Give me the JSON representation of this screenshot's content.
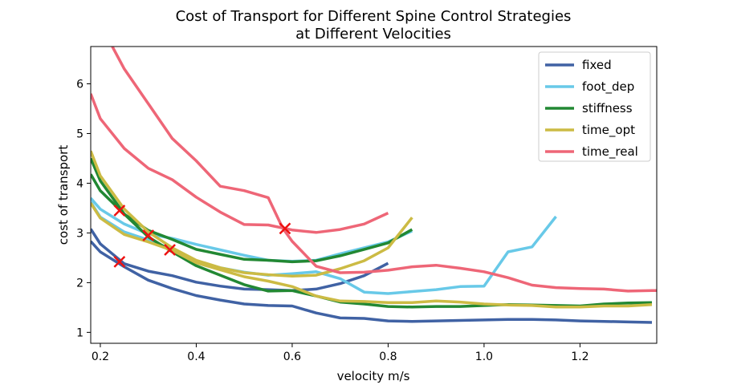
{
  "chart_data": {
    "type": "line",
    "title": "Cost of Transport for Different Spine Control Strategies\nat Different Velocities",
    "xlabel": "velocity m/s",
    "ylabel": "cost of transport",
    "xlim": [
      0.18,
      1.36
    ],
    "ylim": [
      0.78,
      6.75
    ],
    "xticks": [
      0.2,
      0.4,
      0.6,
      0.8,
      1.0,
      1.2
    ],
    "xtick_labels": [
      "0.2",
      "0.4",
      "0.6",
      "0.8",
      "1.0",
      "1.2"
    ],
    "yticks": [
      1,
      2,
      3,
      4,
      5,
      6
    ],
    "ytick_labels": [
      "1",
      "2",
      "3",
      "4",
      "5",
      "6"
    ],
    "grid": false,
    "legend_position": "top-right",
    "series": [
      {
        "name": "fixed",
        "color": "#4062a4",
        "branches": [
          [
            [
              0.18,
              2.83
            ],
            [
              0.2,
              2.62
            ],
            [
              0.25,
              2.32
            ],
            [
              0.3,
              2.05
            ],
            [
              0.35,
              1.88
            ],
            [
              0.4,
              1.74
            ],
            [
              0.45,
              1.65
            ],
            [
              0.5,
              1.57
            ],
            [
              0.55,
              1.54
            ],
            [
              0.6,
              1.53
            ],
            [
              0.65,
              1.39
            ],
            [
              0.7,
              1.29
            ],
            [
              0.75,
              1.28
            ],
            [
              0.8,
              1.23
            ],
            [
              0.85,
              1.22
            ],
            [
              0.9,
              1.23
            ],
            [
              0.95,
              1.24
            ],
            [
              1.0,
              1.25
            ],
            [
              1.05,
              1.26
            ],
            [
              1.1,
              1.26
            ],
            [
              1.15,
              1.25
            ],
            [
              1.2,
              1.23
            ],
            [
              1.25,
              1.22
            ],
            [
              1.3,
              1.21
            ],
            [
              1.35,
              1.2
            ]
          ],
          [
            [
              0.18,
              3.08
            ],
            [
              0.2,
              2.78
            ],
            [
              0.25,
              2.38
            ],
            [
              0.3,
              2.23
            ],
            [
              0.35,
              2.14
            ],
            [
              0.4,
              2.01
            ],
            [
              0.45,
              1.93
            ],
            [
              0.5,
              1.87
            ],
            [
              0.55,
              1.86
            ],
            [
              0.6,
              1.84
            ],
            [
              0.65,
              1.87
            ],
            [
              0.7,
              1.98
            ],
            [
              0.75,
              2.14
            ],
            [
              0.8,
              2.39
            ]
          ]
        ]
      },
      {
        "name": "foot_dep",
        "color": "#68c9e8",
        "branches": [
          [
            [
              0.18,
              3.7
            ],
            [
              0.2,
              3.48
            ],
            [
              0.25,
              3.18
            ],
            [
              0.3,
              2.98
            ],
            [
              0.35,
              2.89
            ],
            [
              0.4,
              2.77
            ],
            [
              0.45,
              2.66
            ],
            [
              0.5,
              2.55
            ],
            [
              0.55,
              2.45
            ],
            [
              0.6,
              2.43
            ],
            [
              0.65,
              2.45
            ],
            [
              0.7,
              2.58
            ],
            [
              0.75,
              2.7
            ],
            [
              0.8,
              2.82
            ],
            [
              0.85,
              3.04
            ]
          ],
          [
            [
              0.18,
              3.62
            ],
            [
              0.2,
              3.32
            ],
            [
              0.25,
              3.02
            ],
            [
              0.3,
              2.86
            ],
            [
              0.35,
              2.67
            ],
            [
              0.4,
              2.44
            ],
            [
              0.45,
              2.3
            ],
            [
              0.5,
              2.21
            ],
            [
              0.55,
              2.15
            ],
            [
              0.6,
              2.18
            ],
            [
              0.65,
              2.22
            ],
            [
              0.7,
              2.08
            ],
            [
              0.75,
              1.81
            ],
            [
              0.8,
              1.78
            ],
            [
              0.85,
              1.82
            ],
            [
              0.9,
              1.86
            ],
            [
              0.95,
              1.92
            ],
            [
              1.0,
              1.93
            ],
            [
              1.05,
              2.62
            ],
            [
              1.1,
              2.72
            ],
            [
              1.15,
              3.33
            ]
          ]
        ]
      },
      {
        "name": "stiffness",
        "color": "#228833",
        "branches": [
          [
            [
              0.18,
              4.5
            ],
            [
              0.2,
              4.05
            ],
            [
              0.25,
              3.38
            ],
            [
              0.3,
              3.05
            ],
            [
              0.35,
              2.87
            ],
            [
              0.4,
              2.67
            ],
            [
              0.45,
              2.57
            ],
            [
              0.5,
              2.47
            ],
            [
              0.55,
              2.45
            ],
            [
              0.6,
              2.42
            ],
            [
              0.65,
              2.44
            ],
            [
              0.7,
              2.54
            ],
            [
              0.75,
              2.67
            ],
            [
              0.8,
              2.8
            ],
            [
              0.85,
              3.07
            ]
          ],
          [
            [
              0.18,
              4.18
            ],
            [
              0.2,
              3.85
            ],
            [
              0.25,
              3.38
            ],
            [
              0.3,
              2.92
            ],
            [
              0.35,
              2.62
            ],
            [
              0.4,
              2.34
            ],
            [
              0.45,
              2.15
            ],
            [
              0.5,
              1.96
            ],
            [
              0.55,
              1.83
            ],
            [
              0.6,
              1.84
            ],
            [
              0.65,
              1.73
            ],
            [
              0.7,
              1.61
            ],
            [
              0.75,
              1.57
            ],
            [
              0.8,
              1.52
            ],
            [
              0.85,
              1.51
            ],
            [
              0.9,
              1.52
            ],
            [
              0.95,
              1.52
            ],
            [
              1.0,
              1.54
            ],
            [
              1.05,
              1.56
            ],
            [
              1.1,
              1.55
            ],
            [
              1.15,
              1.54
            ],
            [
              1.2,
              1.53
            ],
            [
              1.25,
              1.57
            ],
            [
              1.3,
              1.59
            ],
            [
              1.35,
              1.6
            ]
          ]
        ]
      },
      {
        "name": "time_opt",
        "color": "#ccbb44",
        "branches": [
          [
            [
              0.18,
              4.65
            ],
            [
              0.2,
              4.15
            ],
            [
              0.25,
              3.48
            ],
            [
              0.3,
              3.02
            ],
            [
              0.35,
              2.7
            ],
            [
              0.4,
              2.45
            ],
            [
              0.45,
              2.3
            ],
            [
              0.5,
              2.2
            ],
            [
              0.55,
              2.16
            ],
            [
              0.6,
              2.13
            ],
            [
              0.65,
              2.15
            ],
            [
              0.7,
              2.28
            ],
            [
              0.75,
              2.44
            ],
            [
              0.8,
              2.7
            ],
            [
              0.85,
              3.31
            ]
          ],
          [
            [
              0.18,
              3.6
            ],
            [
              0.2,
              3.3
            ],
            [
              0.25,
              2.97
            ],
            [
              0.3,
              2.82
            ],
            [
              0.35,
              2.65
            ],
            [
              0.4,
              2.4
            ],
            [
              0.45,
              2.26
            ],
            [
              0.5,
              2.12
            ],
            [
              0.55,
              2.03
            ],
            [
              0.6,
              1.92
            ],
            [
              0.65,
              1.73
            ],
            [
              0.7,
              1.63
            ],
            [
              0.75,
              1.62
            ],
            [
              0.8,
              1.6
            ],
            [
              0.85,
              1.6
            ],
            [
              0.9,
              1.63
            ],
            [
              0.95,
              1.61
            ],
            [
              1.0,
              1.57
            ],
            [
              1.05,
              1.55
            ],
            [
              1.1,
              1.54
            ],
            [
              1.15,
              1.51
            ],
            [
              1.2,
              1.51
            ],
            [
              1.25,
              1.53
            ],
            [
              1.3,
              1.53
            ],
            [
              1.35,
              1.56
            ]
          ]
        ]
      },
      {
        "name": "time_real",
        "color": "#ee6677",
        "branches": [
          [
            [
              0.225,
              6.75
            ],
            [
              0.25,
              6.3
            ],
            [
              0.3,
              5.6
            ],
            [
              0.35,
              4.9
            ],
            [
              0.4,
              4.45
            ],
            [
              0.45,
              3.94
            ],
            [
              0.5,
              3.85
            ],
            [
              0.55,
              3.71
            ],
            [
              0.58,
              3.1
            ],
            [
              0.6,
              2.83
            ],
            [
              0.65,
              2.33
            ],
            [
              0.7,
              2.2
            ],
            [
              0.75,
              2.21
            ],
            [
              0.8,
              2.25
            ],
            [
              0.85,
              2.32
            ],
            [
              0.9,
              2.35
            ],
            [
              0.95,
              2.29
            ],
            [
              1.0,
              2.22
            ],
            [
              1.05,
              2.1
            ],
            [
              1.1,
              1.95
            ],
            [
              1.15,
              1.9
            ],
            [
              1.2,
              1.88
            ],
            [
              1.25,
              1.87
            ],
            [
              1.3,
              1.83
            ],
            [
              1.35,
              1.84
            ],
            [
              1.36,
              1.84
            ]
          ],
          [
            [
              0.18,
              5.8
            ],
            [
              0.2,
              5.3
            ],
            [
              0.25,
              4.7
            ],
            [
              0.3,
              4.3
            ],
            [
              0.35,
              4.07
            ],
            [
              0.4,
              3.72
            ],
            [
              0.45,
              3.42
            ],
            [
              0.5,
              3.17
            ],
            [
              0.55,
              3.16
            ],
            [
              0.6,
              3.06
            ],
            [
              0.65,
              3.01
            ],
            [
              0.7,
              3.07
            ],
            [
              0.75,
              3.18
            ],
            [
              0.8,
              3.4
            ]
          ]
        ]
      }
    ],
    "markers": {
      "symbol": "x",
      "color": "#ee1111",
      "points": [
        [
          0.24,
          3.45
        ],
        [
          0.24,
          2.42
        ],
        [
          0.3,
          2.95
        ],
        [
          0.345,
          2.66
        ],
        [
          0.585,
          3.09
        ]
      ]
    }
  }
}
